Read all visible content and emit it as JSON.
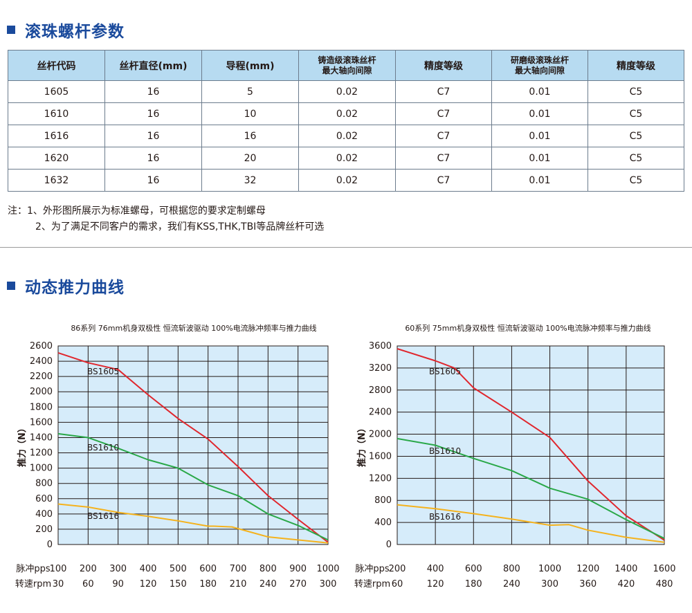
{
  "section1": {
    "title": "滚珠螺杆参数"
  },
  "table": {
    "headers": [
      [
        "丝杆代码"
      ],
      [
        "丝杆直径(mm)"
      ],
      [
        "导程(mm)"
      ],
      [
        "铸造级滚珠丝杆",
        "最大轴向间隙"
      ],
      [
        "精度等级"
      ],
      [
        "研磨级滚珠丝杆",
        "最大轴向间隙"
      ],
      [
        "精度等级"
      ]
    ],
    "rows": [
      [
        "1605",
        "16",
        "5",
        "0.02",
        "C7",
        "0.01",
        "C5"
      ],
      [
        "1610",
        "16",
        "10",
        "0.02",
        "C7",
        "0.01",
        "C5"
      ],
      [
        "1616",
        "16",
        "16",
        "0.02",
        "C7",
        "0.01",
        "C5"
      ],
      [
        "1620",
        "16",
        "20",
        "0.02",
        "C7",
        "0.01",
        "C5"
      ],
      [
        "1632",
        "16",
        "32",
        "0.02",
        "C7",
        "0.01",
        "C5"
      ]
    ]
  },
  "notes": {
    "line1": "注：1、外形图所展示为标准螺母，可根据您的要求定制螺母",
    "line2": "2、为了满足不同客户的需求，我们有KSS,THK,TBI等品牌丝杆可选"
  },
  "section2": {
    "title": "动态推力曲线"
  },
  "colors": {
    "brand": "#1a4a9c",
    "header_bg": "#b7dbf1",
    "plot_bg": "#d6ecfa",
    "BS1605": "#e0262d",
    "BS1610": "#2aa848",
    "BS1616": "#f5b21c"
  },
  "chart_data": [
    {
      "type": "line",
      "title": "86系列 76mm机身双极性 恒流斩波驱动 100%电流脉冲频率与推力曲线",
      "ylabel": "推力（N）",
      "xrow_labels": [
        "脉冲pps",
        "转速rpm"
      ],
      "x": [
        100,
        200,
        300,
        400,
        500,
        600,
        700,
        800,
        900,
        1000
      ],
      "x_rpm": [
        30,
        60,
        90,
        120,
        150,
        180,
        210,
        240,
        270,
        300
      ],
      "xlim": [
        100,
        1000
      ],
      "ylim": [
        0,
        2600
      ],
      "yticks": [
        0,
        200,
        400,
        600,
        800,
        1000,
        1200,
        1400,
        1600,
        1800,
        2000,
        2200,
        2400,
        2600
      ],
      "grid": true,
      "series": [
        {
          "name": "BS1605",
          "x": [
            100,
            200,
            300,
            400,
            500,
            600,
            700,
            800,
            900,
            1000
          ],
          "values": [
            2510,
            2380,
            2290,
            1960,
            1650,
            1380,
            1020,
            640,
            330,
            30
          ]
        },
        {
          "name": "BS1610",
          "x": [
            100,
            200,
            300,
            400,
            500,
            600,
            700,
            800,
            900,
            1000
          ],
          "values": [
            1450,
            1400,
            1260,
            1110,
            1000,
            780,
            640,
            400,
            250,
            60
          ]
        },
        {
          "name": "BS1616",
          "x": [
            100,
            200,
            300,
            400,
            500,
            600,
            620,
            680,
            800,
            900,
            1000
          ],
          "values": [
            530,
            490,
            420,
            370,
            310,
            240,
            240,
            230,
            100,
            60,
            20
          ]
        }
      ]
    },
    {
      "type": "line",
      "title": "60系列 75mm机身双极性 恒流斩波驱动 100%电流脉冲频率与推力曲线",
      "ylabel": "推力（N）",
      "xrow_labels": [
        "脉冲pps",
        "转速rpm"
      ],
      "x": [
        200,
        400,
        600,
        800,
        1000,
        1200,
        1400,
        1600
      ],
      "x_rpm": [
        60,
        120,
        180,
        240,
        300,
        360,
        420,
        480
      ],
      "xlim": [
        200,
        1600
      ],
      "ylim": [
        0,
        3600
      ],
      "yticks": [
        0,
        400,
        800,
        1200,
        1600,
        2000,
        2400,
        2800,
        3200,
        3600
      ],
      "grid": true,
      "series": [
        {
          "name": "BS1605",
          "x": [
            200,
            400,
            500,
            600,
            800,
            1000,
            1200,
            1400,
            1600
          ],
          "values": [
            3550,
            3330,
            3200,
            2840,
            2400,
            1940,
            1150,
            520,
            80
          ]
        },
        {
          "name": "BS1610",
          "x": [
            200,
            400,
            600,
            800,
            1000,
            1200,
            1400,
            1600
          ],
          "values": [
            1920,
            1800,
            1560,
            1340,
            1020,
            820,
            450,
            110
          ]
        },
        {
          "name": "BS1616",
          "x": [
            200,
            400,
            600,
            800,
            1000,
            1100,
            1200,
            1400,
            1600
          ],
          "values": [
            720,
            650,
            560,
            460,
            350,
            360,
            260,
            130,
            40
          ]
        }
      ]
    }
  ]
}
